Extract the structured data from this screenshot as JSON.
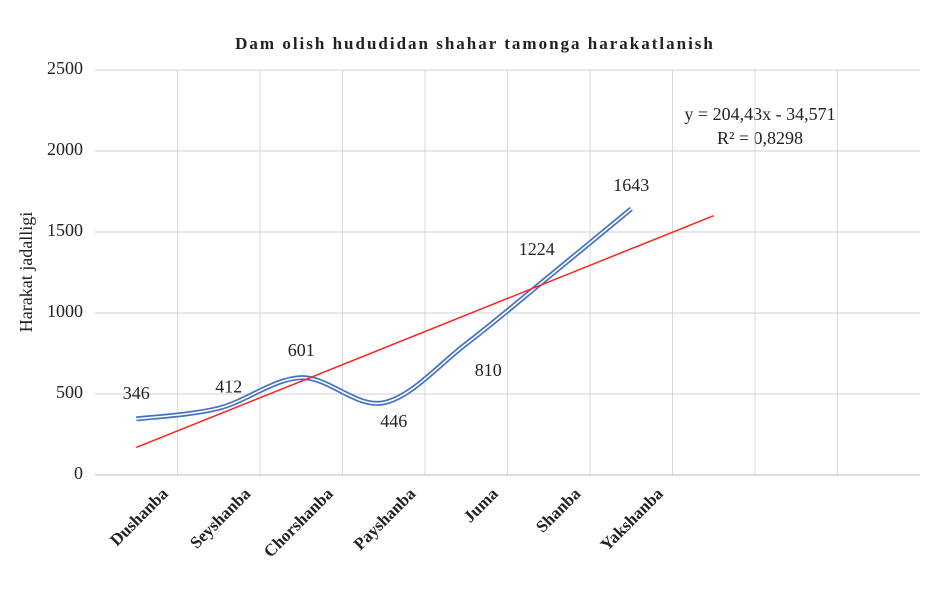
{
  "chart_data": {
    "type": "line",
    "title": "Dam olish hududidan  shahar tamonga harakatlanish",
    "y_label": "Harakat  jadalligi",
    "categories": [
      "Dushanba",
      "Seyshanba",
      "Chorshanba",
      "Payshanba",
      "Juma",
      "Shanba",
      "Yakshanba",
      null,
      null,
      null
    ],
    "series": [
      {
        "name": "Harakat jadalligi",
        "color": "#4472c4",
        "values": [
          346,
          412,
          601,
          446,
          810,
          1224,
          1643,
          null,
          null,
          null
        ]
      }
    ],
    "smooth": true,
    "trendline": {
      "type": "linear",
      "slope": 204.43,
      "intercept": -34.571,
      "forward": 1,
      "color": "#ff2020",
      "equation": "y = 204,43x - 34,571",
      "r2_label": "R² = 0,8298"
    },
    "ylim": [
      0,
      2500
    ],
    "yticks": [
      0,
      500,
      1000,
      1500,
      2000,
      2500
    ],
    "grid": true
  }
}
